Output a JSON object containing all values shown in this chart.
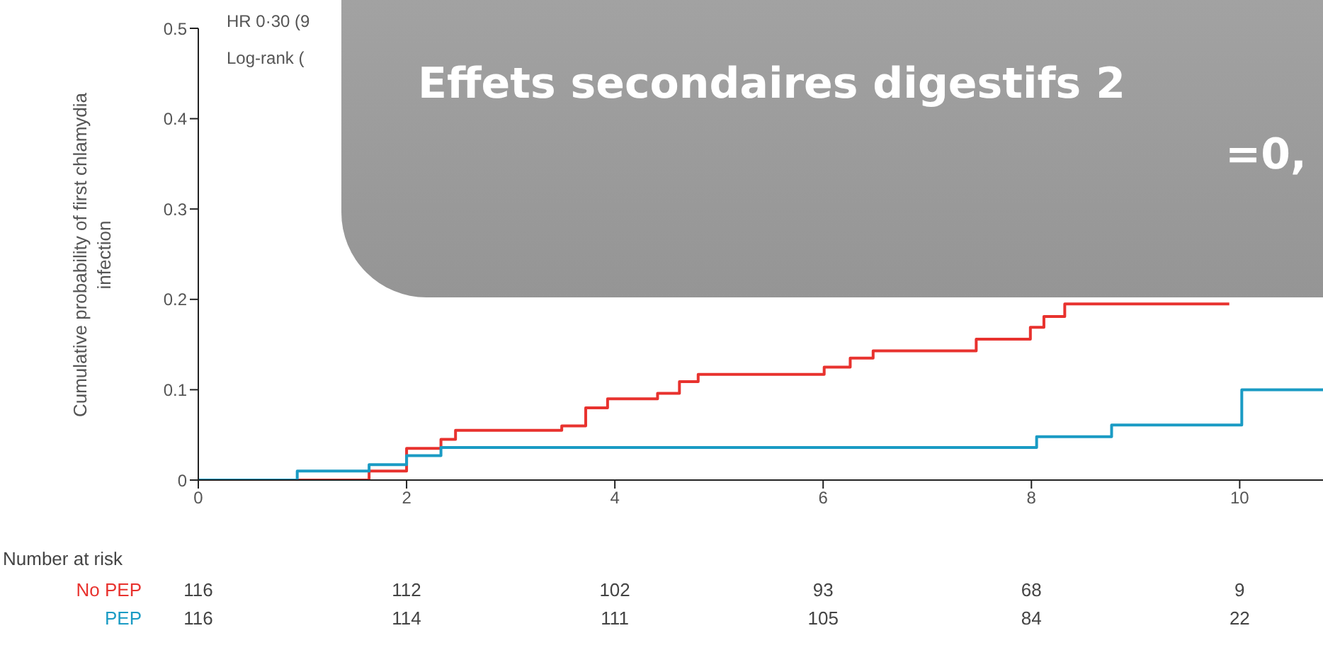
{
  "chart_data": {
    "type": "step",
    "ylabel": "Cumulative probability of first chlamydia infection",
    "xlim": [
      0,
      10.8
    ],
    "xticks": [
      0,
      2,
      4,
      6,
      8,
      10
    ],
    "ylim": [
      0,
      0.5
    ],
    "yticks": [
      0,
      0.1,
      0.2,
      0.3,
      0.4,
      0.5
    ],
    "grid": false,
    "legend": false,
    "marker": "none",
    "line_style": "solid",
    "series": [
      {
        "name": "No PEP",
        "color": "#e8322e",
        "x": [
          0,
          1.64,
          2.0,
          2.33,
          2.47,
          3.49,
          3.72,
          3.93,
          4.41,
          4.62,
          4.8,
          6.01,
          6.26,
          6.48,
          7.47,
          7.99,
          8.12,
          8.32,
          9.9
        ],
        "values": [
          0,
          0.01,
          0.035,
          0.045,
          0.055,
          0.06,
          0.08,
          0.09,
          0.096,
          0.109,
          0.117,
          0.125,
          0.135,
          0.143,
          0.156,
          0.169,
          0.181,
          0.195,
          0.195
        ]
      },
      {
        "name": "PEP",
        "color": "#1a9bc4",
        "x": [
          0,
          0.95,
          1.64,
          2.0,
          2.33,
          8.05,
          8.77,
          10.02,
          10.8
        ],
        "values": [
          0,
          0.01,
          0.017,
          0.027,
          0.036,
          0.048,
          0.061,
          0.1,
          0.1
        ]
      }
    ],
    "annotations": [
      "HR 0·30 (9",
      "Log-rank (",
      "Effets secondaires digestifs 2",
      "=0,",
      "Number at risk",
      "116",
      "112",
      "102",
      "93",
      "68",
      "9",
      "116",
      "114",
      "111",
      "105",
      "84",
      "22"
    ]
  }
}
